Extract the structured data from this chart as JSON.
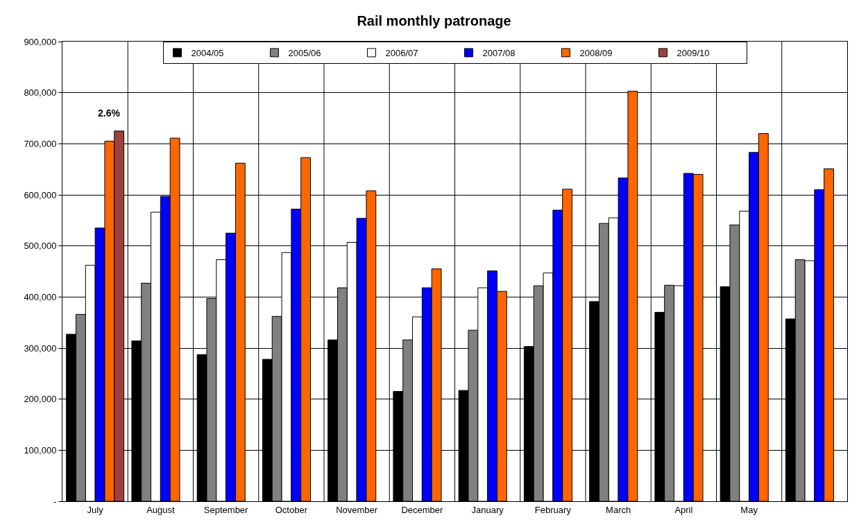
{
  "chart_data": {
    "type": "bar",
    "title": "Rail monthly patronage",
    "categories": [
      "July",
      "August",
      "September",
      "October",
      "November",
      "December",
      "January",
      "February",
      "March",
      "April",
      "May",
      null
    ],
    "series": [
      {
        "name": "2004/05",
        "color": "#000000",
        "values": [
          327000,
          314000,
          287000,
          278000,
          316000,
          215000,
          217000,
          303000,
          391000,
          370000,
          420000,
          357000
        ]
      },
      {
        "name": "2005/06",
        "color": "#808080",
        "values": [
          366000,
          427000,
          397000,
          362000,
          418000,
          316000,
          335000,
          422000,
          544000,
          423000,
          541000,
          473000
        ]
      },
      {
        "name": "2006/07",
        "color": "#ffffff",
        "values": [
          462000,
          566000,
          473000,
          487000,
          507000,
          361000,
          418000,
          447000,
          555000,
          422000,
          568000,
          471000
        ]
      },
      {
        "name": "2007/08",
        "color": "#0000ff",
        "values": [
          535000,
          597000,
          525000,
          572000,
          554000,
          418000,
          451000,
          570000,
          633000,
          642000,
          683000,
          610000
        ]
      },
      {
        "name": "2008/09",
        "color": "#ff6600",
        "values": [
          705000,
          711000,
          662000,
          673000,
          608000,
          455000,
          411000,
          611000,
          803000,
          640000,
          720000,
          651000
        ]
      },
      {
        "name": "2009/10",
        "color": "#a0413c",
        "values": [
          725000,
          null,
          null,
          null,
          null,
          null,
          null,
          null,
          null,
          null,
          null,
          null
        ]
      }
    ],
    "ylim": [
      0,
      900000
    ],
    "yticks": [
      {
        "value": 0,
        "label": "-"
      },
      {
        "value": 100000,
        "label": "100,000"
      },
      {
        "value": 200000,
        "label": "200,000"
      },
      {
        "value": 300000,
        "label": "300,000"
      },
      {
        "value": 400000,
        "label": "400,000"
      },
      {
        "value": 500000,
        "label": "500,000"
      },
      {
        "value": 600000,
        "label": "600,000"
      },
      {
        "value": 700000,
        "label": "700,000"
      },
      {
        "value": 800000,
        "label": "800,000"
      },
      {
        "value": 900000,
        "label": "900,000"
      }
    ],
    "annotations": [
      "2.6%"
    ],
    "grid": true,
    "legend": "top"
  }
}
